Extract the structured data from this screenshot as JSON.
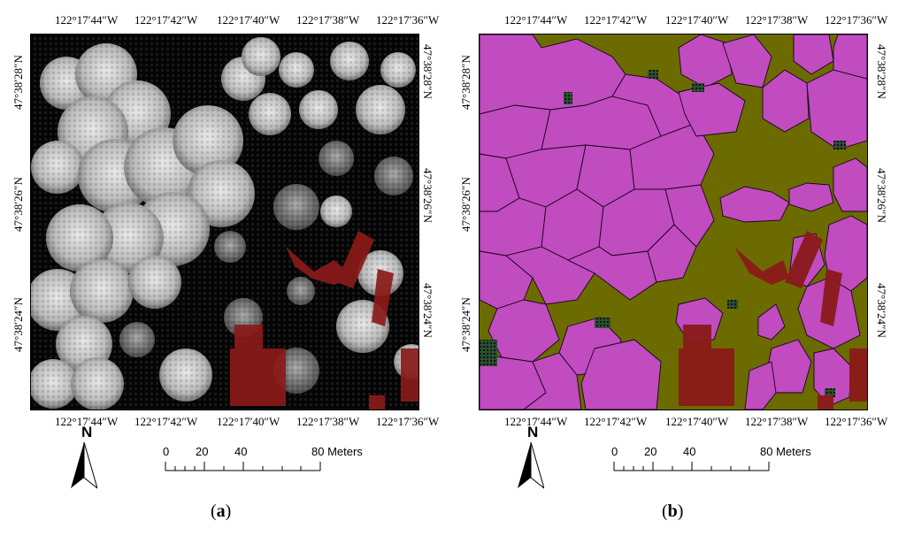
{
  "panels": [
    {
      "id": "a",
      "caption_open": "(",
      "caption_letter": "a",
      "caption_close": ")",
      "lon_top": [
        "122°17′44″W",
        "122°17′42″W",
        "122°17′40″W",
        "122°17′38″W",
        "122°17′36″W"
      ],
      "lon_bottom": [
        "122°17′44″W",
        "122°17′42″W",
        "122°17′40″W",
        "122°17′38″W",
        "122°17′36″W"
      ],
      "lat_left": [
        "47°38′28″N",
        "47°38′26″N",
        "47°38′24″N"
      ],
      "lat_right": [
        "47°38′28″N",
        "47°38′26″N",
        "47°38′24″N"
      ],
      "north_label": "N",
      "scale_ticks": [
        "0",
        "20",
        "40",
        "80 Meters"
      ]
    },
    {
      "id": "b",
      "caption_open": "(",
      "caption_letter": "b",
      "caption_close": ")",
      "lon_top": [
        "122°17′44″W",
        "122°17′42″W",
        "122°17′40″W",
        "122°17′38″W",
        "122°17′36″W"
      ],
      "lon_bottom": [
        "122°17′44″W",
        "122°17′42″W",
        "122°17′40″W",
        "122°17′38″W",
        "122°17′36″W"
      ],
      "lat_left": [
        "47°38′28″N",
        "47°38′26″N",
        "47°38′24″N"
      ],
      "lat_right": [
        "47°38′28″N",
        "47°38′26″N",
        "47°38′24″N"
      ],
      "north_label": "N",
      "scale_ticks": [
        "0",
        "20",
        "40",
        "80 Meters"
      ]
    }
  ],
  "colors": {
    "background_a": "#050505",
    "canopy_gray": "#bdbdbd",
    "building_red": "#8b1a1a",
    "background_b": "#6b6b00",
    "crown_magenta": "#c04cc0",
    "crown_outline": "#1a001a",
    "gap_green": "#1f5a2a"
  }
}
